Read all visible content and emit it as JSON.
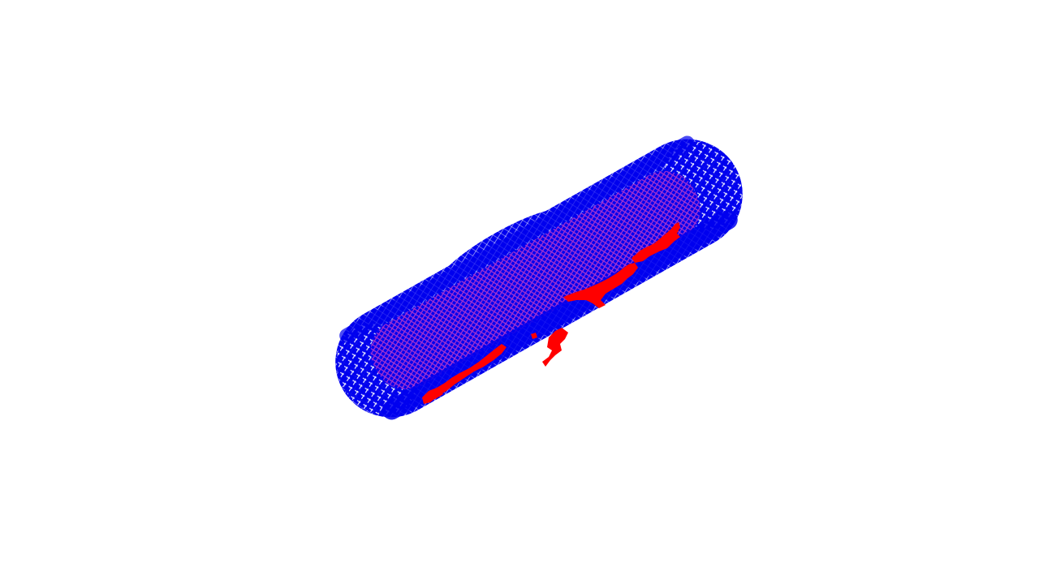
{
  "scene": {
    "background_color": "#ffffff",
    "shell_color": "#0000ee",
    "inner_color": "#aa33cc",
    "highlight_color": "#ff0000",
    "gap_color": "#ffffff"
  }
}
